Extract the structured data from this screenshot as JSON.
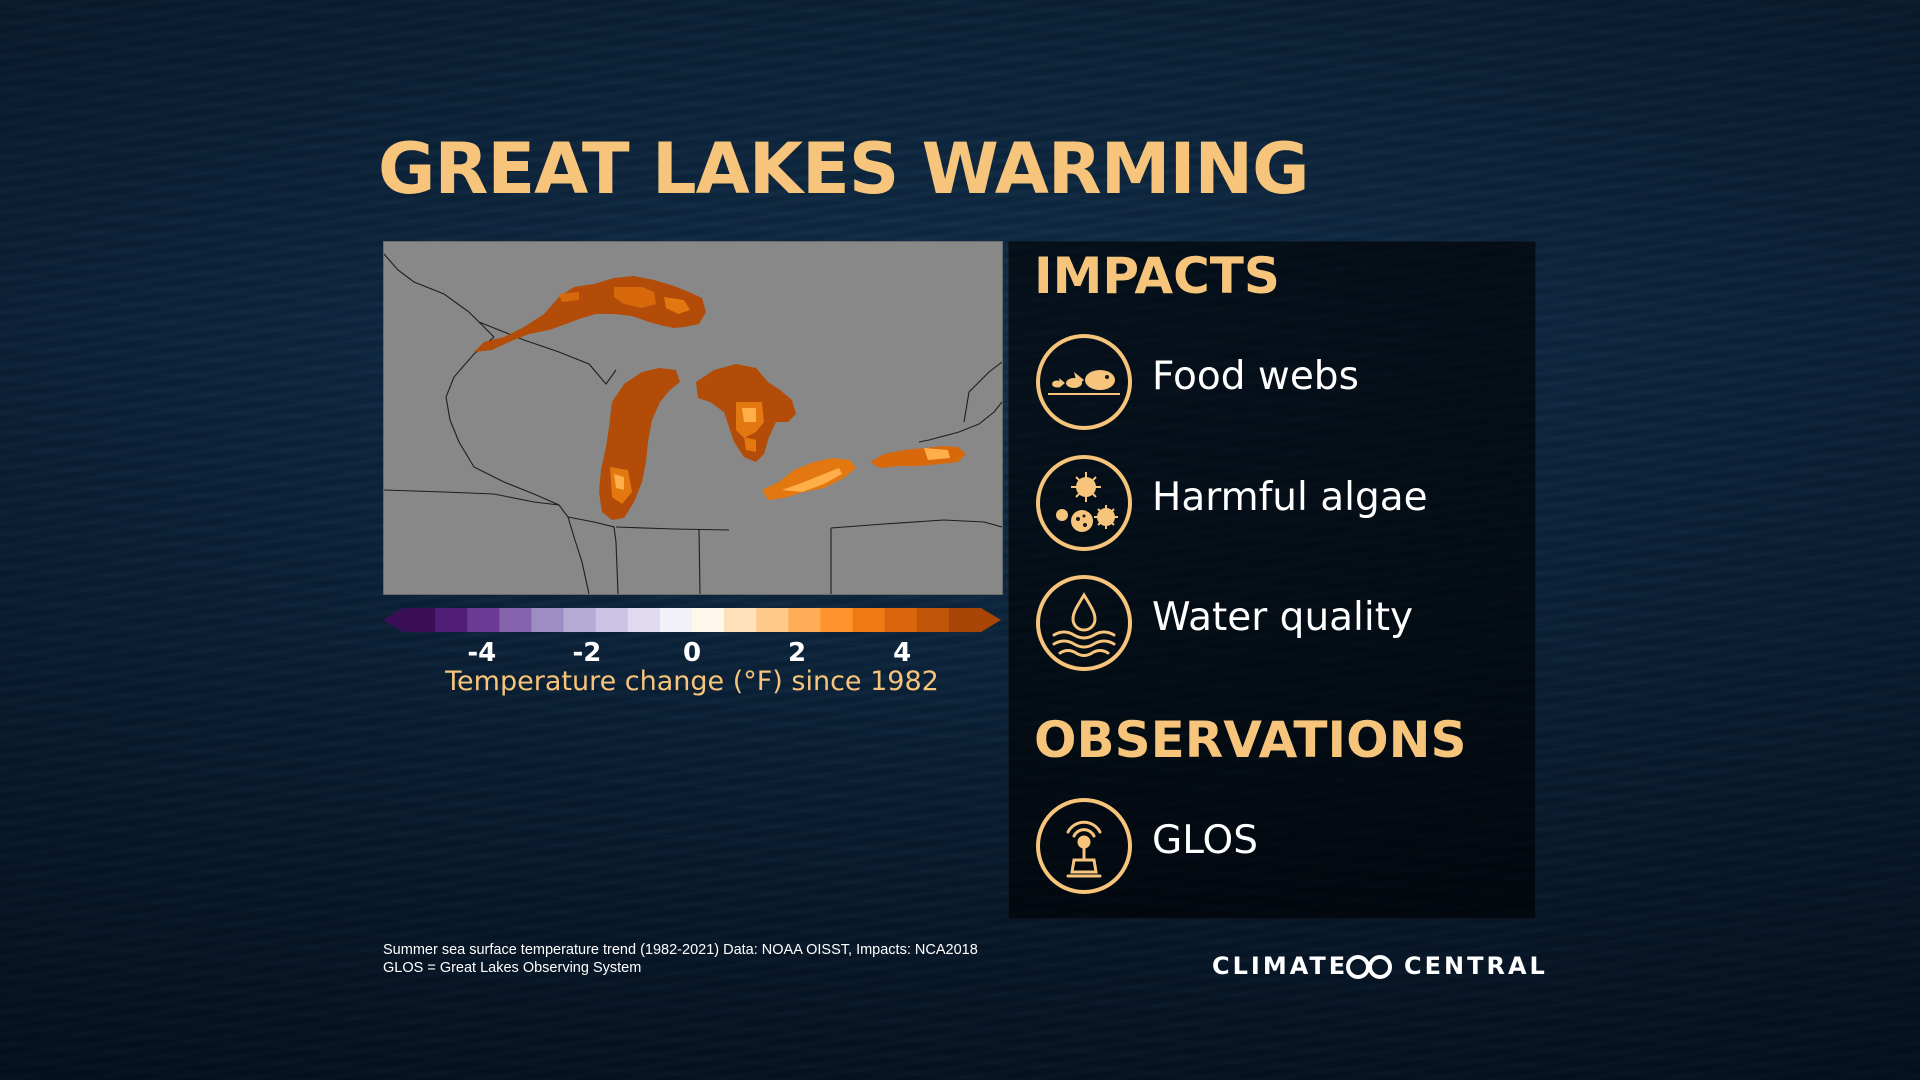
{
  "title": "GREAT LAKES WARMING",
  "map": {
    "colorbar": {
      "ticks": [
        "-4",
        "-2",
        "0",
        "2",
        "4"
      ],
      "tick_values": [
        -4,
        -2,
        0,
        2,
        4
      ],
      "range": [
        -5.5,
        5.5
      ],
      "label": "Temperature change (°F) since 1982",
      "colors": [
        "#3b0f56",
        "#4f1d73",
        "#6a3a94",
        "#8564ad",
        "#9d8dc4",
        "#b4aad4",
        "#cbc3e3",
        "#dfdaf0",
        "#f2f0f8",
        "#fff7ea",
        "#ffe0ba",
        "#ffc98a",
        "#ffad57",
        "#ff942f",
        "#f07a14",
        "#d9650c",
        "#c05508",
        "#a84607"
      ]
    }
  },
  "panel": {
    "impacts_heading": "IMPACTS",
    "impacts": [
      {
        "label": "Food webs",
        "icon": "fish-icon"
      },
      {
        "label": "Harmful algae",
        "icon": "algae-icon"
      },
      {
        "label": "Water quality",
        "icon": "water-drop-icon"
      }
    ],
    "observations_heading": "OBSERVATIONS",
    "observations": [
      {
        "label": "GLOS",
        "icon": "buoy-icon"
      }
    ]
  },
  "footnote": {
    "line1": "Summer sea surface temperature trend (1982-2021) Data: NOAA OISST, Impacts: NCA2018",
    "line2": "GLOS = Great Lakes Observing System"
  },
  "brand": {
    "left": "CLIMATE",
    "right": "CENTRAL"
  },
  "colors": {
    "accent": "#f6c47a",
    "map_land": "#888888",
    "warm_dark": "#b24c08",
    "warm_mid": "#e2780f",
    "warm_light": "#ffae4a"
  }
}
